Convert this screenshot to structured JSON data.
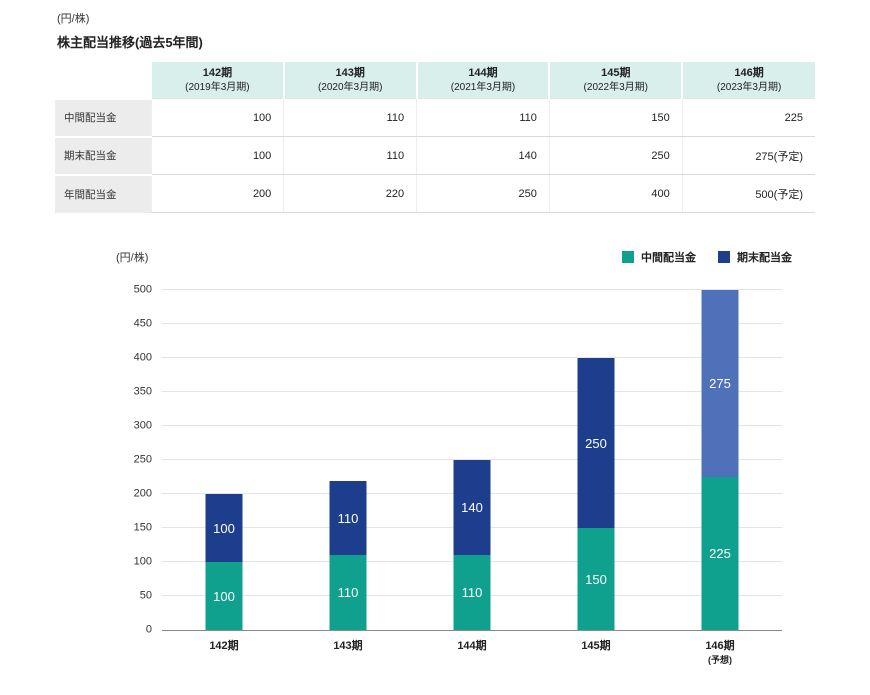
{
  "page": {
    "unit_label": "(円/株)",
    "title": "株主配当推移(過去5年間)"
  },
  "table": {
    "columns": [
      {
        "period": "142期",
        "date": "(2019年3月期)"
      },
      {
        "period": "143期",
        "date": "(2020年3月期)"
      },
      {
        "period": "144期",
        "date": "(2021年3月期)"
      },
      {
        "period": "145期",
        "date": "(2022年3月期)"
      },
      {
        "period": "146期",
        "date": "(2023年3月期)"
      }
    ],
    "rows": [
      {
        "label": "中間配当金",
        "values": [
          "100",
          "110",
          "110",
          "150",
          "225"
        ]
      },
      {
        "label": "期末配当金",
        "values": [
          "100",
          "110",
          "140",
          "250",
          "275(予定)"
        ]
      },
      {
        "label": "年間配当金",
        "values": [
          "200",
          "220",
          "250",
          "400",
          "500(予定)"
        ]
      }
    ]
  },
  "chart_data": {
    "type": "bar",
    "stacked": true,
    "title": "",
    "unit_label": "(円/株)",
    "categories": [
      "142期",
      "143期",
      "144期",
      "145期",
      "146期"
    ],
    "category_notes": [
      "",
      "",
      "",
      "",
      "(予想)"
    ],
    "series": [
      {
        "name": "中間配当金",
        "color": "#10a18e",
        "values": [
          100,
          110,
          110,
          150,
          225
        ]
      },
      {
        "name": "期末配当金",
        "color": "#1c3e8d",
        "values": [
          100,
          110,
          140,
          250,
          275
        ]
      }
    ],
    "forecast": {
      "category_index": 4,
      "series_index": 1,
      "color": "#4e71ba"
    },
    "ylim": [
      0,
      500
    ],
    "ytick_step": 50,
    "grid": true,
    "legend_position": "top-right",
    "bar_value_labels": "white, centered in each segment"
  }
}
